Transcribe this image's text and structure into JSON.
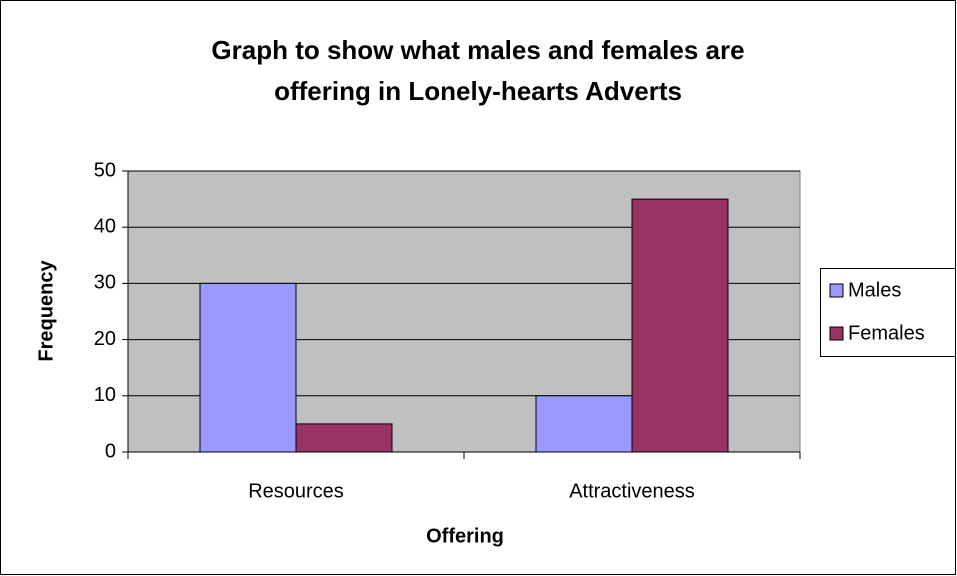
{
  "chart_data": {
    "type": "bar",
    "title": [
      "Graph to show what males and females are",
      "offering in Lonely-hearts Adverts"
    ],
    "x_label": "Offering",
    "y_label": "Frequency",
    "categories": [
      "Resources",
      "Attractiveness"
    ],
    "series": [
      {
        "name": "Males",
        "color": "#9999ff",
        "values": [
          30,
          10
        ]
      },
      {
        "name": "Females",
        "color": "#993366",
        "values": [
          5,
          45
        ]
      }
    ],
    "ylim": [
      0,
      50
    ],
    "yticks": [
      0,
      10,
      20,
      30,
      40,
      50
    ],
    "grid": true,
    "legend": "right"
  }
}
